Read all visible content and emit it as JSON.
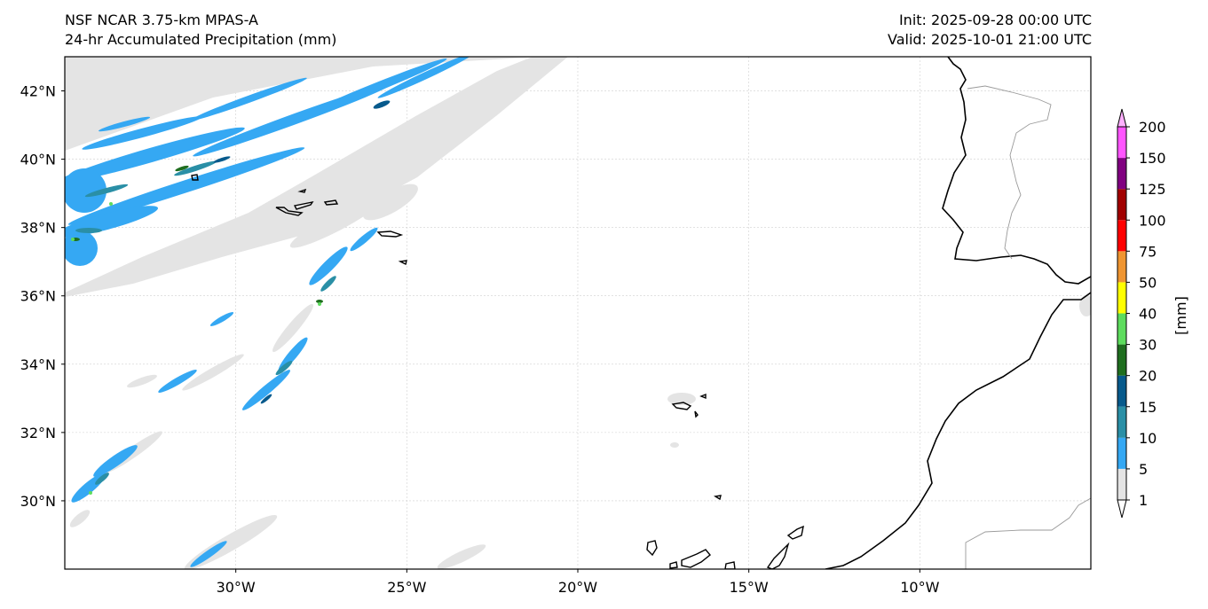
{
  "header": {
    "model_line": "NSF NCAR 3.75-km MPAS-A",
    "product_line": "24-hr Accumulated Precipitation (mm)",
    "init_line": "Init: 2025-09-28 00:00 UTC",
    "valid_line": "Valid: 2025-10-01 21:00 UTC"
  },
  "map": {
    "extent": {
      "lon_min": -35,
      "lon_max": -5,
      "lat_min": 28,
      "lat_max": 43
    },
    "lat_ticks": [
      {
        "value": 42,
        "label": "42°N"
      },
      {
        "value": 40,
        "label": "40°N"
      },
      {
        "value": 38,
        "label": "38°N"
      },
      {
        "value": 36,
        "label": "36°N"
      },
      {
        "value": 34,
        "label": "34°N"
      },
      {
        "value": 32,
        "label": "32°N"
      },
      {
        "value": 30,
        "label": "30°N"
      }
    ],
    "lon_ticks": [
      {
        "value": -30,
        "label": "30°W"
      },
      {
        "value": -25,
        "label": "25°W"
      },
      {
        "value": -20,
        "label": "20°W"
      },
      {
        "value": -15,
        "label": "15°W"
      },
      {
        "value": -10,
        "label": "10°W"
      }
    ],
    "gridlines": true,
    "colors": {
      "coast": "#000000",
      "border": "#9a9a9a",
      "grid": "#d0d0d0"
    }
  },
  "colorbar": {
    "unit_label": "[mm]",
    "extend": "both",
    "levels": [
      "1",
      "5",
      "10",
      "15",
      "20",
      "30",
      "40",
      "50",
      "75",
      "100",
      "125",
      "150",
      "200"
    ],
    "colors": [
      "#e4e4e4",
      "#35a8f3",
      "#2a8fa6",
      "#075a8c",
      "#1f6e1f",
      "#5ddc5d",
      "#ffff00",
      "#ef9531",
      "#ff0000",
      "#a10000",
      "#800080",
      "#ff55ff"
    ],
    "under_color": "#ffffff",
    "over_color": "#ffb0ff"
  }
}
